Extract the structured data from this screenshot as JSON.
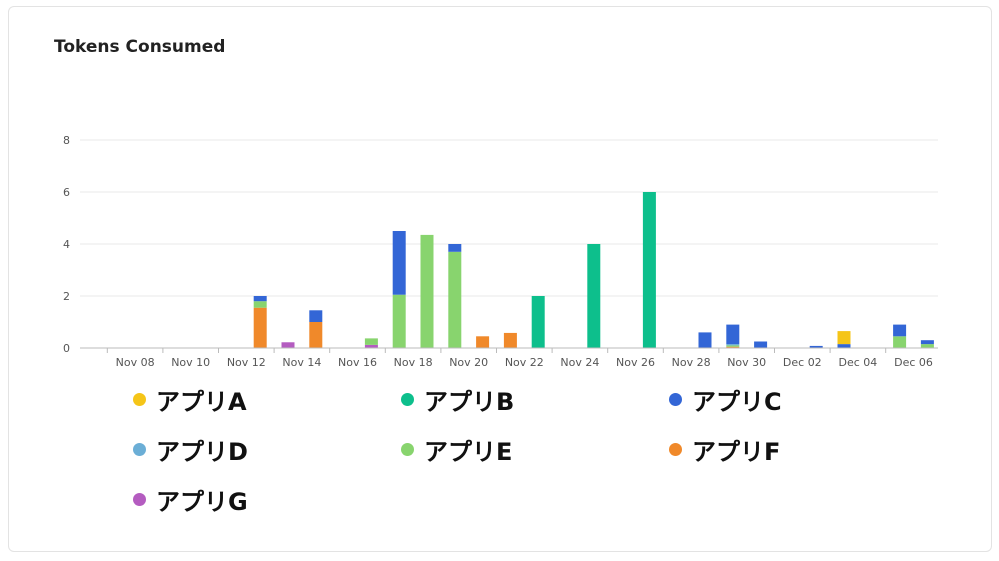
{
  "chart_data": {
    "type": "bar",
    "stacked": true,
    "title": "Tokens Consumed",
    "ylim": [
      0,
      8
    ],
    "yticks": [
      0,
      2,
      4,
      6,
      8
    ],
    "grid": true,
    "legend_position": "bottom",
    "categories": [
      "Nov 07",
      "Nov 08",
      "Nov 09",
      "Nov 10",
      "Nov 11",
      "Nov 12",
      "Nov 13",
      "Nov 14",
      "Nov 15",
      "Nov 16",
      "Nov 17",
      "Nov 18",
      "Nov 19",
      "Nov 20",
      "Nov 21",
      "Nov 22",
      "Nov 23",
      "Nov 24",
      "Nov 25",
      "Nov 26",
      "Nov 27",
      "Nov 28",
      "Nov 29",
      "Nov 30",
      "Dec 01",
      "Dec 02",
      "Dec 03",
      "Dec 04",
      "Dec 05",
      "Dec 06",
      "Dec 07"
    ],
    "xtick_labels": [
      "Nov 08",
      "Nov 10",
      "Nov 12",
      "Nov 14",
      "Nov 16",
      "Nov 18",
      "Nov 20",
      "Nov 22",
      "Nov 24",
      "Nov 26",
      "Nov 28",
      "Nov 30",
      "Dec 02",
      "Dec 04",
      "Dec 06"
    ],
    "series": [
      {
        "name": "アプリA",
        "color": "#f5c518",
        "values": [
          0,
          0,
          0,
          0,
          0,
          0,
          0,
          0,
          0,
          0,
          0,
          0,
          0,
          0,
          0,
          0,
          0,
          0,
          0,
          0,
          0,
          0,
          0,
          0,
          0,
          0,
          0,
          0.5,
          0,
          0,
          0
        ]
      },
      {
        "name": "アプリB",
        "color": "#0dbf8c",
        "values": [
          0,
          0,
          0,
          0,
          0,
          0,
          0,
          0,
          0,
          0,
          0,
          0,
          0,
          0,
          0,
          0,
          2.0,
          0,
          4.0,
          0,
          6.0,
          0,
          0,
          0,
          0,
          0,
          0,
          0,
          0,
          0,
          0
        ]
      },
      {
        "name": "アプリC",
        "color": "#3366d6",
        "values": [
          0,
          0,
          0,
          0,
          0,
          0,
          0.2,
          0,
          0.45,
          0,
          0,
          2.45,
          0,
          0.3,
          0,
          0,
          0,
          0,
          0,
          0,
          0,
          0,
          0.6,
          0.75,
          0.25,
          0,
          0.08,
          0.15,
          0,
          0.45,
          0.15
        ]
      },
      {
        "name": "アプリD",
        "color": "#6baed6",
        "values": [
          0,
          0,
          0,
          0,
          0,
          0,
          0,
          0,
          0,
          0,
          0,
          0,
          0,
          0,
          0,
          0,
          0,
          0,
          0,
          0,
          0,
          0,
          0,
          0.05,
          0,
          0,
          0,
          0,
          0,
          0,
          0
        ]
      },
      {
        "name": "アプリE",
        "color": "#88d46e",
        "values": [
          0,
          0,
          0,
          0,
          0,
          0,
          0.25,
          0,
          0,
          0,
          0.25,
          2.05,
          4.35,
          3.7,
          0,
          0,
          0,
          0,
          0,
          0,
          0,
          0,
          0,
          0.05,
          0,
          0,
          0,
          0,
          0,
          0.45,
          0.15
        ]
      },
      {
        "name": "アプリF",
        "color": "#f0892a",
        "values": [
          0,
          0,
          0,
          0,
          0,
          0,
          1.55,
          0,
          1.0,
          0,
          0,
          0,
          0,
          0,
          0.45,
          0.58,
          0,
          0,
          0,
          0,
          0,
          0,
          0,
          0.05,
          0,
          0,
          0,
          0,
          0,
          0,
          0
        ]
      },
      {
        "name": "アプリG",
        "color": "#b45cc0",
        "values": [
          0,
          0,
          0,
          0,
          0,
          0,
          0,
          0.22,
          0,
          0,
          0.12,
          0,
          0,
          0,
          0,
          0,
          0,
          0,
          0,
          0,
          0,
          0,
          0,
          0,
          0,
          0,
          0,
          0,
          0,
          0,
          0
        ]
      }
    ]
  }
}
